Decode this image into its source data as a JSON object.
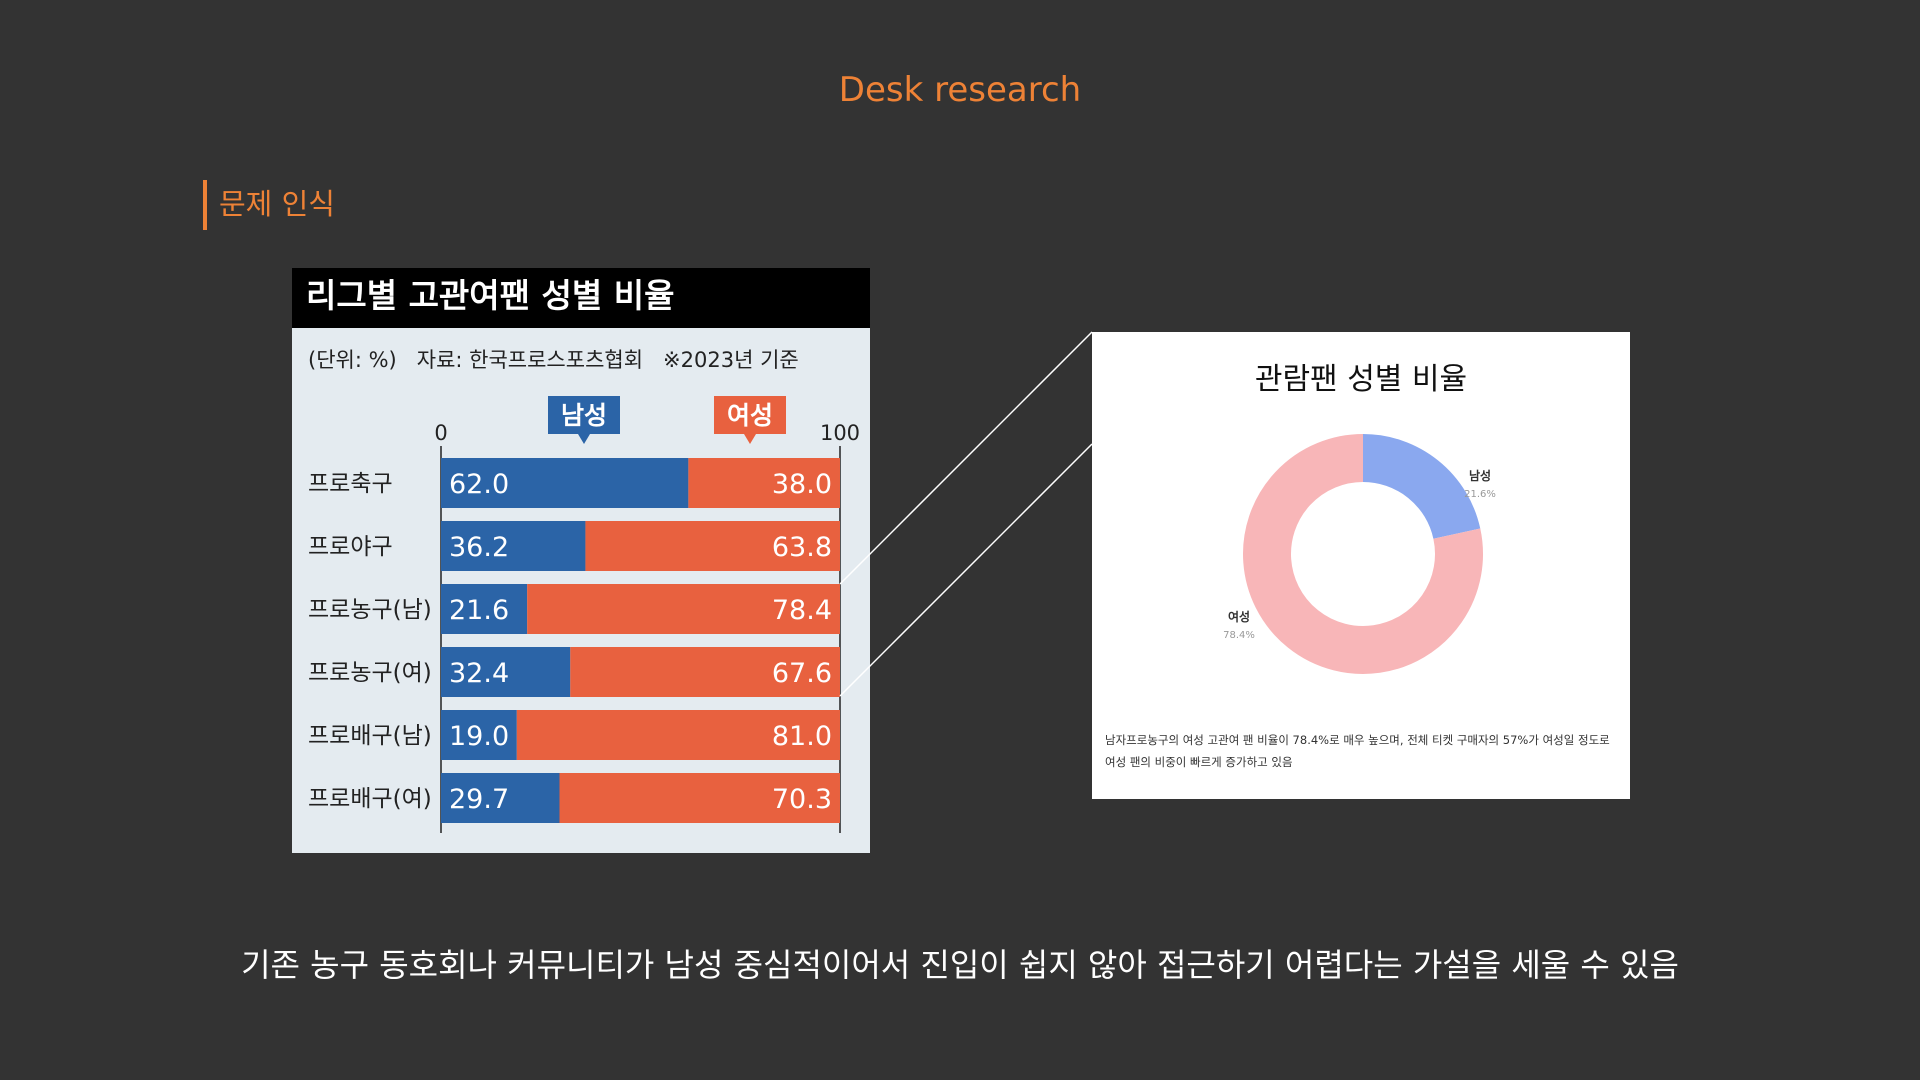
{
  "page": {
    "title": "Desk research",
    "section_label": "문제 인식",
    "bottom_text": "기존 농구 동호회나 커뮤니티가 남성 중심적이어서 진입이 쉽지 않아 접근하기 어렵다는 가설을 세울 수 있음"
  },
  "colors": {
    "accent": "#ee8236",
    "male_bar": "#2b64a7",
    "female_bar": "#e8613f",
    "donut_male": "#8aa8ef",
    "donut_female": "#f8b6b8"
  },
  "chart_data": [
    {
      "type": "bar",
      "stacked": true,
      "orientation": "horizontal",
      "title": "리그별 고관여팬 성별 비율",
      "subtitle": "(단위: %)   자료: 한국프로스포츠협회   ※2023년 기준",
      "categories": [
        "프로축구",
        "프로야구",
        "프로농구(남)",
        "프로농구(여)",
        "프로배구(남)",
        "프로배구(여)"
      ],
      "series": [
        {
          "name": "남성",
          "values": [
            62.0,
            36.2,
            21.6,
            32.4,
            19.0,
            29.7
          ]
        },
        {
          "name": "여성",
          "values": [
            38.0,
            63.8,
            78.4,
            67.6,
            81.0,
            70.3
          ]
        }
      ],
      "xlim": [
        0,
        100
      ],
      "tick_labels": [
        "0",
        "100"
      ]
    },
    {
      "type": "pie",
      "donut": true,
      "title": "관람팬 성별 비율",
      "slices": [
        {
          "label": "남성",
          "value": 21.6,
          "value_label": "21.6%"
        },
        {
          "label": "여성",
          "value": 78.4,
          "value_label": "78.4%"
        }
      ],
      "note": "남자프로농구의 여성 고관여 팬 비율이 78.4%로 매우 높으며, 전체 티켓 구매자의 57%가 여성일 정도로 여성 팬의 비중이 빠르게 증가하고 있음"
    }
  ]
}
